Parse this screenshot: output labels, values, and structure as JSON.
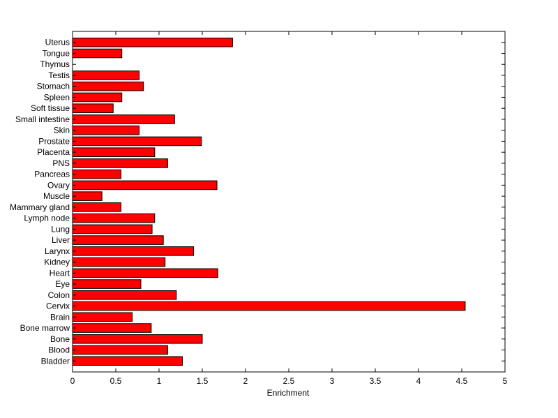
{
  "chart_data": {
    "type": "bar",
    "orientation": "horizontal",
    "categories": [
      "Bladder",
      "Blood",
      "Bone",
      "Bone marrow",
      "Brain",
      "Cervix",
      "Colon",
      "Eye",
      "Heart",
      "Kidney",
      "Larynx",
      "Liver",
      "Lung",
      "Lymph node",
      "Mammary gland",
      "Muscle",
      "Ovary",
      "Pancreas",
      "PNS",
      "Placenta",
      "Prostate",
      "Skin",
      "Small intestine",
      "Soft tissue",
      "Spleen",
      "Stomach",
      "Testis",
      "Thymus",
      "Tongue",
      "Uterus"
    ],
    "values": [
      1.27,
      1.1,
      1.5,
      0.91,
      0.69,
      4.54,
      1.2,
      0.79,
      1.68,
      1.07,
      1.4,
      1.05,
      0.92,
      0.95,
      0.56,
      0.34,
      1.67,
      0.56,
      1.1,
      0.95,
      1.49,
      0.77,
      1.18,
      0.47,
      0.57,
      0.82,
      0.77,
      0.0,
      0.57,
      1.85
    ],
    "xlabel": "Enrichment",
    "ylabel": "",
    "title": "",
    "xlim": [
      0,
      5
    ],
    "xticks": [
      "0",
      "0.5",
      "1",
      "1.5",
      "2",
      "2.5",
      "3",
      "3.5",
      "4",
      "4.5",
      "5"
    ],
    "grid": false,
    "bar_color": "#ff0000",
    "edge_color": "#000000"
  }
}
